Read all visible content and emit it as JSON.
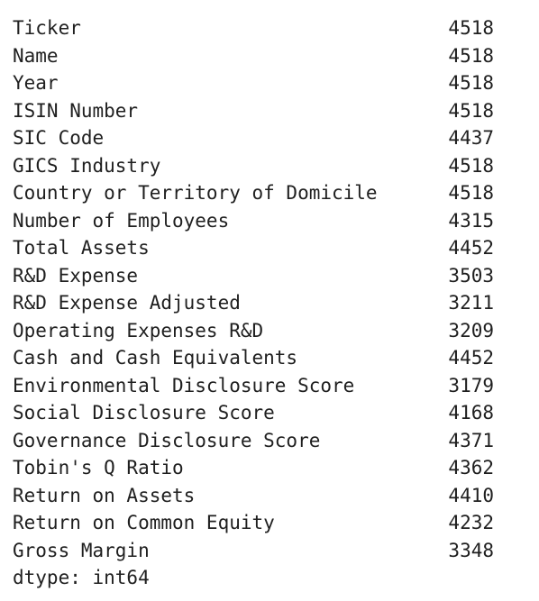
{
  "rows": [
    {
      "label": "Ticker",
      "value": "4518"
    },
    {
      "label": "Name",
      "value": "4518"
    },
    {
      "label": "Year",
      "value": "4518"
    },
    {
      "label": "ISIN Number",
      "value": "4518"
    },
    {
      "label": "SIC Code",
      "value": "4437"
    },
    {
      "label": "GICS Industry",
      "value": "4518"
    },
    {
      "label": "Country or Territory of Domicile",
      "value": "4518"
    },
    {
      "label": "Number of Employees",
      "value": "4315"
    },
    {
      "label": "Total Assets",
      "value": "4452"
    },
    {
      "label": "R&D Expense",
      "value": "3503"
    },
    {
      "label": "R&D Expense Adjusted",
      "value": "3211"
    },
    {
      "label": "Operating Expenses R&D",
      "value": "3209"
    },
    {
      "label": "Cash and Cash Equivalents",
      "value": "4452"
    },
    {
      "label": "Environmental Disclosure Score",
      "value": "3179"
    },
    {
      "label": "Social Disclosure Score",
      "value": "4168"
    },
    {
      "label": "Governance Disclosure Score",
      "value": "4371"
    },
    {
      "label": "Tobin's Q Ratio",
      "value": "4362"
    },
    {
      "label": "Return on Assets",
      "value": "4410"
    },
    {
      "label": "Return on Common Equity",
      "value": "4232"
    },
    {
      "label": "Gross Margin",
      "value": "3348"
    }
  ],
  "dtype_line": "dtype: int64"
}
